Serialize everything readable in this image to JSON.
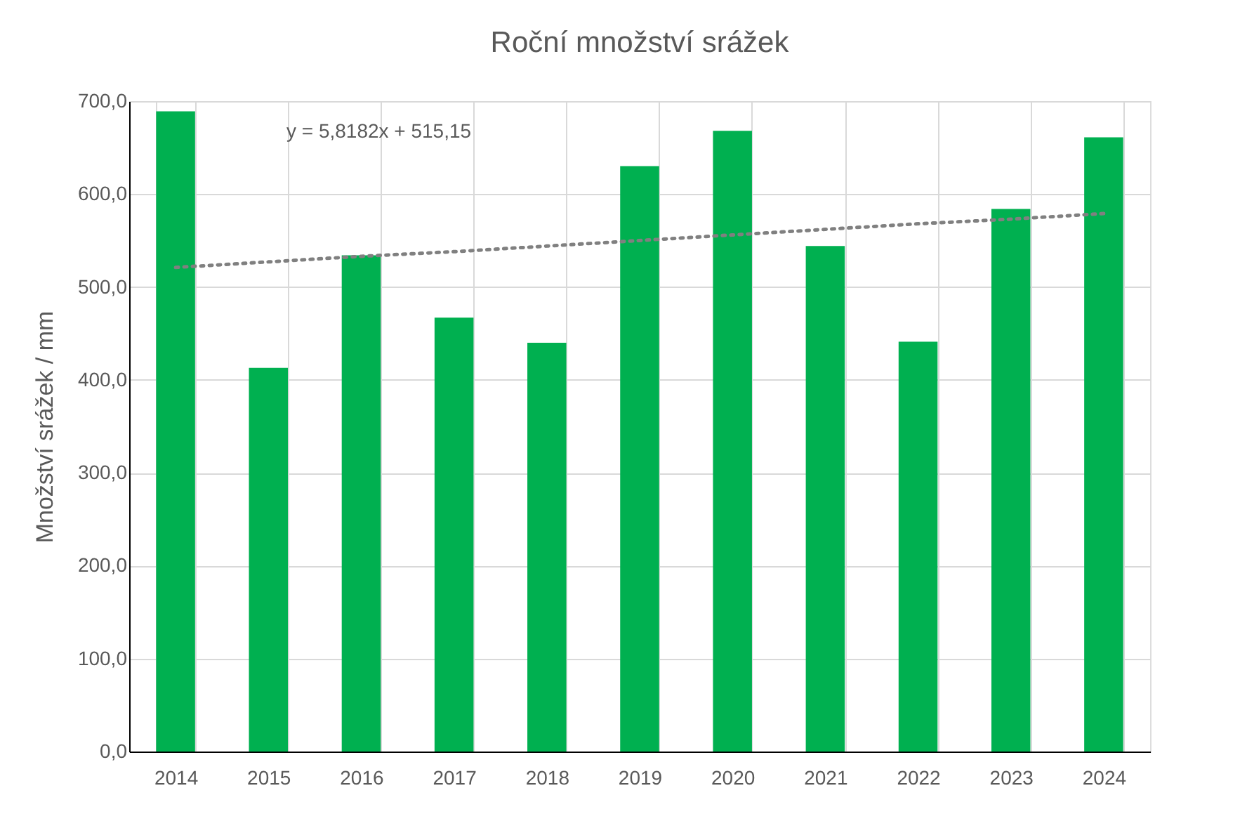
{
  "chart_data": {
    "type": "bar",
    "title": "Roční množství srážek",
    "ylabel": "Množství srážek / mm",
    "categories": [
      "2014",
      "2015",
      "2016",
      "2017",
      "2018",
      "2019",
      "2020",
      "2021",
      "2022",
      "2023",
      "2024"
    ],
    "series": [
      {
        "color": "#00b050",
        "values": [
          689,
          413,
          534,
          467,
          440,
          630,
          668,
          544,
          441,
          584,
          661
        ]
      },
      {
        "type": "line",
        "color": "#808080",
        "line_style": "dotted",
        "marker": "none",
        "values": [
          521,
          527,
          533,
          538,
          544,
          550,
          556,
          562,
          568,
          573,
          579
        ]
      }
    ],
    "annotations": [
      "y = 5,8182x + 515,15"
    ],
    "ylim": [
      0,
      700
    ],
    "yticks": [
      {
        "value": 0,
        "label": "0,0"
      },
      {
        "value": 100,
        "label": "100,0"
      },
      {
        "value": 200,
        "label": "200,0"
      },
      {
        "value": 300,
        "label": "300,0"
      },
      {
        "value": 400,
        "label": "400,0"
      },
      {
        "value": 500,
        "label": "500,0"
      },
      {
        "value": 600,
        "label": "600,0"
      },
      {
        "value": 700,
        "label": "700,0"
      }
    ],
    "grid": true
  }
}
